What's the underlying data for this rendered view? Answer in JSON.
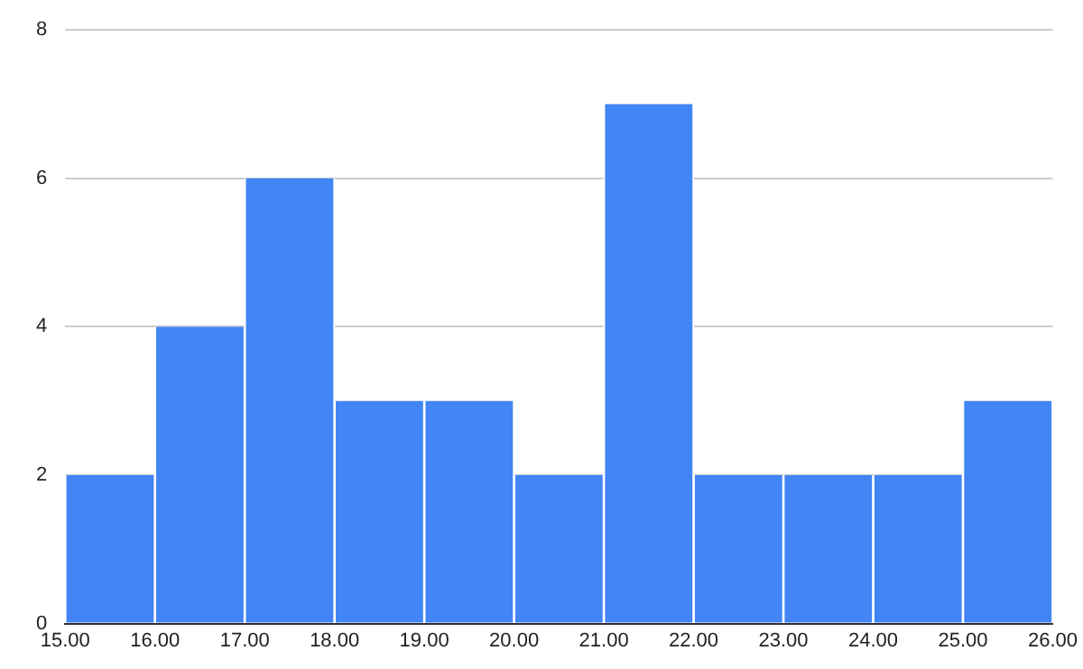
{
  "chart_data": {
    "type": "histogram",
    "bins": [
      15,
      16,
      17,
      18,
      19,
      20,
      21,
      22,
      23,
      24,
      25,
      26
    ],
    "values": [
      2,
      4,
      6,
      3,
      3,
      2,
      7,
      2,
      2,
      2,
      3
    ],
    "color": "#4285f4",
    "xlim": [
      15,
      26
    ],
    "xticks": [
      {
        "value": 15,
        "label": "15.00"
      },
      {
        "value": 16,
        "label": "16.00"
      },
      {
        "value": 17,
        "label": "17.00"
      },
      {
        "value": 18,
        "label": "18.00"
      },
      {
        "value": 19,
        "label": "19.00"
      },
      {
        "value": 20,
        "label": "20.00"
      },
      {
        "value": 21,
        "label": "21.00"
      },
      {
        "value": 22,
        "label": "22.00"
      },
      {
        "value": 23,
        "label": "23.00"
      },
      {
        "value": 24,
        "label": "24.00"
      },
      {
        "value": 25,
        "label": "25.00"
      },
      {
        "value": 26,
        "label": "26.00"
      }
    ],
    "ylim": [
      0,
      8
    ],
    "yticks": [
      0,
      2,
      4,
      6,
      8
    ],
    "grid": "y",
    "legend": false
  }
}
